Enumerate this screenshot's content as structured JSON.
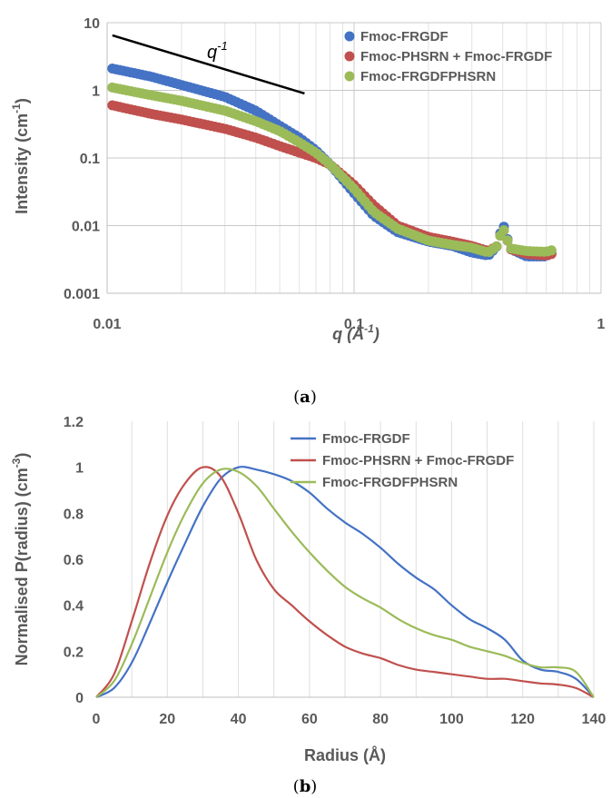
{
  "chart_data": [
    {
      "type": "scatter",
      "panel_label": "a",
      "xlabel": "q (Å-1)",
      "ylabel": "Intensity (cm-1)",
      "xscale": "log",
      "yscale": "log",
      "xlim": [
        0.01,
        1
      ],
      "ylim": [
        0.001,
        10
      ],
      "x_ticks": [
        "0.01",
        "0.1",
        "1"
      ],
      "y_ticks": [
        "0.001",
        "0.01",
        "0.1",
        "1",
        "10"
      ],
      "legend_position": "top-right",
      "annotation": {
        "text": "q",
        "superscript": "-1"
      },
      "guide_line": {
        "x": [
          0.0105,
          0.063
        ],
        "y": [
          6.5,
          0.9
        ]
      },
      "series": [
        {
          "name": "Fmoc-FRGDF",
          "color": "#4472C4",
          "x": [
            0.0105,
            0.015,
            0.02,
            0.03,
            0.04,
            0.05,
            0.06,
            0.07,
            0.08,
            0.1,
            0.12,
            0.15,
            0.2,
            0.25,
            0.3,
            0.35,
            0.38,
            0.4,
            0.43,
            0.5,
            0.6,
            0.63
          ],
          "y": [
            2.1,
            1.6,
            1.2,
            0.8,
            0.5,
            0.3,
            0.2,
            0.13,
            0.08,
            0.03,
            0.014,
            0.008,
            0.0058,
            0.005,
            0.004,
            0.0036,
            0.005,
            0.011,
            0.0045,
            0.0035,
            0.0035,
            0.004
          ]
        },
        {
          "name": "Fmoc-PHSRN + Fmoc-FRGDF",
          "color": "#C0504D",
          "x": [
            0.0105,
            0.015,
            0.02,
            0.03,
            0.04,
            0.05,
            0.06,
            0.07,
            0.08,
            0.1,
            0.12,
            0.15,
            0.2,
            0.25,
            0.3,
            0.35,
            0.38,
            0.4,
            0.43,
            0.5,
            0.6,
            0.63
          ],
          "y": [
            0.6,
            0.45,
            0.37,
            0.27,
            0.2,
            0.15,
            0.12,
            0.1,
            0.08,
            0.04,
            0.02,
            0.01,
            0.0068,
            0.0058,
            0.005,
            0.0042,
            0.005,
            0.0095,
            0.0045,
            0.0038,
            0.0036,
            0.0038
          ]
        },
        {
          "name": "Fmoc-FRGDFPHSRN",
          "color": "#9BBB59",
          "x": [
            0.0105,
            0.015,
            0.02,
            0.03,
            0.04,
            0.05,
            0.06,
            0.07,
            0.08,
            0.1,
            0.12,
            0.15,
            0.2,
            0.25,
            0.3,
            0.35,
            0.38,
            0.4,
            0.43,
            0.5,
            0.6,
            0.63
          ],
          "y": [
            1.1,
            0.85,
            0.7,
            0.5,
            0.35,
            0.25,
            0.17,
            0.12,
            0.08,
            0.035,
            0.016,
            0.009,
            0.006,
            0.0052,
            0.0047,
            0.004,
            0.005,
            0.0095,
            0.0046,
            0.0042,
            0.0041,
            0.0043
          ]
        }
      ]
    },
    {
      "type": "line",
      "panel_label": "b",
      "xlabel": "Radius (Å)",
      "ylabel": "Normalised P(radius) (cm-3)",
      "xlim": [
        0,
        140
      ],
      "ylim": [
        0,
        1.2
      ],
      "x_ticks": [
        "0",
        "20",
        "40",
        "60",
        "80",
        "100",
        "120",
        "140"
      ],
      "y_ticks": [
        "0",
        "0.2",
        "0.4",
        "0.6",
        "0.8",
        "1",
        "1.2"
      ],
      "legend_position": "top-right",
      "series": [
        {
          "name": "Fmoc-FRGDF",
          "color": "#4472C4",
          "x": [
            0,
            5,
            10,
            15,
            20,
            25,
            30,
            35,
            40,
            45,
            50,
            55,
            60,
            65,
            70,
            75,
            80,
            85,
            90,
            95,
            100,
            105,
            110,
            115,
            120,
            125,
            130,
            135,
            140
          ],
          "y": [
            0,
            0.04,
            0.15,
            0.32,
            0.5,
            0.67,
            0.83,
            0.95,
            1.0,
            0.99,
            0.97,
            0.94,
            0.89,
            0.82,
            0.76,
            0.71,
            0.65,
            0.58,
            0.52,
            0.47,
            0.4,
            0.34,
            0.3,
            0.25,
            0.16,
            0.12,
            0.11,
            0.08,
            0.0
          ]
        },
        {
          "name": "Fmoc-PHSRN + Fmoc-FRGDF",
          "color": "#C0504D",
          "x": [
            0,
            5,
            10,
            15,
            20,
            25,
            30,
            35,
            40,
            45,
            50,
            55,
            60,
            65,
            70,
            75,
            80,
            85,
            90,
            95,
            100,
            105,
            110,
            115,
            120,
            125,
            130,
            135,
            140
          ],
          "y": [
            0,
            0.1,
            0.33,
            0.58,
            0.79,
            0.93,
            1.0,
            0.96,
            0.8,
            0.6,
            0.47,
            0.4,
            0.33,
            0.27,
            0.22,
            0.19,
            0.17,
            0.14,
            0.12,
            0.11,
            0.1,
            0.09,
            0.08,
            0.08,
            0.07,
            0.06,
            0.055,
            0.04,
            0.0
          ]
        },
        {
          "name": "Fmoc-FRGDFPHSRN",
          "color": "#9BBB59",
          "x": [
            0,
            5,
            10,
            15,
            20,
            25,
            30,
            35,
            40,
            45,
            50,
            55,
            60,
            65,
            70,
            75,
            80,
            85,
            90,
            95,
            100,
            105,
            110,
            115,
            120,
            125,
            130,
            135,
            140
          ],
          "y": [
            0,
            0.07,
            0.23,
            0.43,
            0.63,
            0.8,
            0.93,
            0.99,
            0.98,
            0.92,
            0.82,
            0.72,
            0.63,
            0.55,
            0.48,
            0.43,
            0.39,
            0.34,
            0.3,
            0.27,
            0.25,
            0.22,
            0.2,
            0.18,
            0.15,
            0.13,
            0.13,
            0.11,
            0.0
          ]
        }
      ]
    }
  ]
}
